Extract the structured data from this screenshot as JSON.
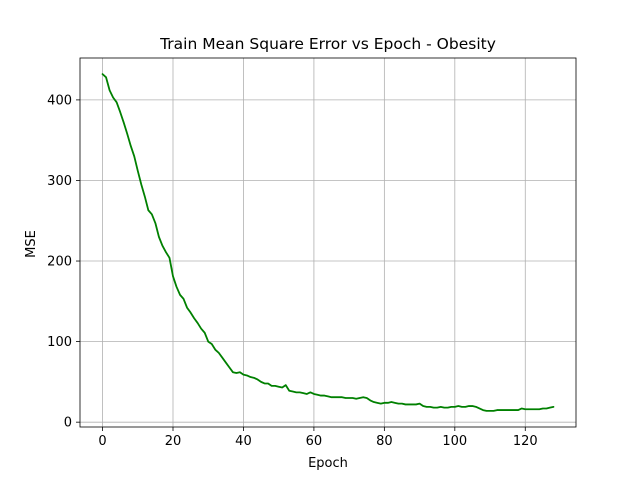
{
  "chart_data": {
    "type": "line",
    "title": "Train Mean Square Error vs Epoch - Obesity",
    "xlabel": "Epoch",
    "ylabel": "MSE",
    "xlim": [
      -6.4,
      134.4
    ],
    "ylim": [
      -6,
      452
    ],
    "xticks": [
      0,
      20,
      40,
      60,
      80,
      100,
      120
    ],
    "yticks": [
      0,
      100,
      200,
      300,
      400
    ],
    "grid": true,
    "series": [
      {
        "color": "#008000",
        "x": [
          0,
          1,
          2,
          3,
          4,
          5,
          6,
          7,
          8,
          9,
          10,
          11,
          12,
          13,
          14,
          15,
          16,
          17,
          18,
          19,
          20,
          21,
          22,
          23,
          24,
          25,
          26,
          27,
          28,
          29,
          30,
          31,
          32,
          33,
          34,
          35,
          36,
          37,
          38,
          39,
          40,
          41,
          42,
          43,
          44,
          45,
          46,
          47,
          48,
          49,
          50,
          51,
          52,
          53,
          54,
          55,
          56,
          57,
          58,
          59,
          60,
          61,
          62,
          63,
          64,
          65,
          66,
          67,
          68,
          69,
          70,
          71,
          72,
          73,
          74,
          75,
          76,
          77,
          78,
          79,
          80,
          81,
          82,
          83,
          84,
          85,
          86,
          87,
          88,
          89,
          90,
          91,
          92,
          93,
          94,
          95,
          96,
          97,
          98,
          99,
          100,
          101,
          102,
          103,
          104,
          105,
          106,
          107,
          108,
          109,
          110,
          111,
          112,
          113,
          114,
          115,
          116,
          117,
          118,
          119,
          120,
          121,
          122,
          123,
          124,
          125,
          126,
          127,
          128
        ],
        "y": [
          432,
          428,
          412,
          403,
          397,
          385,
          372,
          358,
          343,
          330,
          312,
          295,
          280,
          263,
          258,
          247,
          230,
          219,
          211,
          204,
          181,
          168,
          158,
          153,
          142,
          136,
          129,
          123,
          116,
          111,
          100,
          97,
          90,
          86,
          80,
          74,
          68,
          62,
          61,
          62,
          59,
          58,
          56,
          55,
          53,
          50,
          48,
          48,
          45,
          45,
          44,
          43,
          46,
          39,
          38,
          37,
          37,
          36,
          35,
          37,
          35,
          34,
          33,
          33,
          32,
          31,
          31,
          31,
          31,
          30,
          30,
          30,
          29,
          30,
          31,
          30,
          27,
          25,
          24,
          23,
          24,
          24,
          25,
          24,
          23,
          23,
          22,
          22,
          22,
          22,
          23,
          20,
          19,
          19,
          18,
          18,
          19,
          18,
          18,
          19,
          19,
          20,
          19,
          19,
          20,
          20,
          19,
          17,
          15,
          14,
          14,
          14,
          15,
          15,
          15,
          15,
          15,
          15,
          15,
          17,
          16,
          16,
          16,
          16,
          16,
          17,
          17,
          18,
          19
        ]
      }
    ]
  }
}
